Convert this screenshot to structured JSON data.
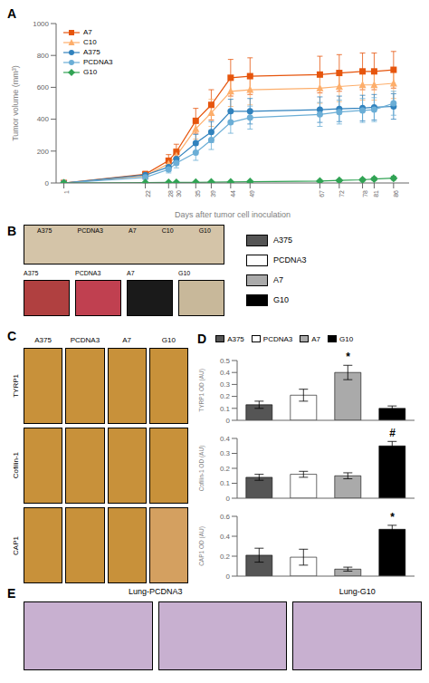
{
  "chart_data": [
    {
      "type": "line",
      "title": "A",
      "xlabel": "Days after tumor cell inoculation",
      "ylabel": "Tumor volume (mm³)",
      "x": [
        1,
        22,
        28,
        30,
        35,
        39,
        44,
        49,
        67,
        72,
        78,
        81,
        86
      ],
      "xlim": [
        -1,
        90
      ],
      "xticks": [
        1,
        22,
        28,
        30,
        35,
        39,
        44,
        49,
        67,
        72,
        78,
        81,
        86
      ],
      "ylim": [
        0,
        1000
      ],
      "yticks": [
        0,
        200,
        400,
        600,
        800,
        1000
      ],
      "legend": "upper left",
      "series": [
        {
          "name": "A7",
          "color": "#e6550d",
          "marker": "square",
          "values": [
            0,
            55,
            140,
            195,
            390,
            490,
            660,
            670,
            680,
            690,
            700,
            700,
            710
          ],
          "errors": [
            0,
            18,
            38,
            48,
            78,
            95,
            115,
            115,
            115,
            115,
            115,
            115,
            115
          ]
        },
        {
          "name": "C10",
          "color": "#fdae6b",
          "marker": "triangle",
          "values": [
            0,
            45,
            120,
            170,
            340,
            440,
            575,
            585,
            595,
            605,
            615,
            615,
            625
          ],
          "errors": [
            0,
            18,
            32,
            45,
            65,
            85,
            95,
            95,
            95,
            95,
            95,
            95,
            95
          ]
        },
        {
          "name": "A375",
          "color": "#3182bd",
          "marker": "circle",
          "values": [
            0,
            50,
            100,
            150,
            250,
            320,
            450,
            450,
            460,
            465,
            470,
            475,
            480
          ],
          "errors": [
            0,
            15,
            25,
            35,
            55,
            65,
            75,
            80,
            80,
            80,
            80,
            80,
            80
          ]
        },
        {
          "name": "PCDNA3",
          "color": "#6baed6",
          "marker": "circle",
          "values": [
            0,
            35,
            85,
            125,
            190,
            270,
            380,
            410,
            430,
            445,
            455,
            460,
            500
          ],
          "errors": [
            0,
            12,
            22,
            30,
            48,
            60,
            68,
            72,
            75,
            75,
            75,
            75,
            75
          ]
        },
        {
          "name": "G10",
          "color": "#31a354",
          "marker": "diamond",
          "values": [
            0,
            2,
            3,
            3,
            4,
            5,
            6,
            8,
            12,
            16,
            20,
            25,
            30
          ],
          "errors": [
            0,
            1,
            1,
            1,
            1,
            1,
            2,
            3,
            4,
            6,
            8,
            10,
            12
          ]
        }
      ]
    },
    {
      "type": "image",
      "title": "B",
      "color": "#d4c4a8",
      "annotations": [
        "A375",
        "PCDNA3",
        "A7",
        "C10",
        "G10"
      ],
      "categories": [
        "A375",
        "PCDNA3",
        "A7",
        "G10"
      ],
      "colors": [
        "#b04040",
        "#c04050",
        "#1a1a1a",
        "#c8b89a"
      ],
      "legend": "right",
      "series": [
        {
          "name": "A375",
          "color": "#555555"
        },
        {
          "name": "PCDNA3",
          "color": "#ffffff"
        },
        {
          "name": "A7",
          "color": "#aaaaaa"
        },
        {
          "name": "G10",
          "color": "#000000"
        }
      ]
    },
    {
      "type": "image",
      "title": "C",
      "categories": [
        "A375",
        "PCDNA3",
        "A7",
        "G10"
      ],
      "series": [
        {
          "name": "TYRP1",
          "colors": [
            "#c8913a",
            "#c8913a",
            "#c8913a",
            "#c8913a"
          ]
        },
        {
          "name": "Cofilin-1",
          "colors": [
            "#c8913a",
            "#c8913a",
            "#c8913a",
            "#c8913a"
          ]
        },
        {
          "name": "CAP1",
          "colors": [
            "#c8913a",
            "#c8913a",
            "#c8913a",
            "#d4a060"
          ]
        }
      ]
    },
    {
      "type": "bar",
      "title": "D",
      "categories": [
        "A375",
        "PCDNA3",
        "A7",
        "G10"
      ],
      "values": [
        0.13,
        0.21,
        0.4,
        0.1
      ],
      "errors": [
        0.03,
        0.05,
        0.06,
        0.02
      ],
      "colors": [
        "#555555",
        "#ffffff",
        "#aaaaaa",
        "#000000"
      ],
      "ylabel": "TYRP1 OD (AU)",
      "ylim": [
        0,
        0.5
      ],
      "yticks": [
        0,
        0.1,
        0.2,
        0.3,
        0.4,
        0.5
      ],
      "annotations": [
        {
          "text": "*",
          "x": "A7"
        }
      ],
      "tick_labels": "y",
      "legend": "top"
    },
    {
      "type": "bar",
      "categories": [
        "A375",
        "PCDNA3",
        "A7",
        "G10"
      ],
      "values": [
        0.14,
        0.16,
        0.15,
        0.35
      ],
      "errors": [
        0.02,
        0.02,
        0.02,
        0.03
      ],
      "colors": [
        "#555555",
        "#ffffff",
        "#aaaaaa",
        "#000000"
      ],
      "ylabel": "Cofilin-1 OD (AU)",
      "ylim": [
        0,
        0.4
      ],
      "yticks": [
        0,
        0.1,
        0.2,
        0.3,
        0.4
      ],
      "annotations": [
        {
          "text": "#",
          "x": "G10"
        }
      ],
      "tick_labels": "y"
    },
    {
      "type": "bar",
      "categories": [
        "A375",
        "PCDNA3",
        "A7",
        "G10"
      ],
      "values": [
        0.21,
        0.19,
        0.07,
        0.47
      ],
      "errors": [
        0.07,
        0.08,
        0.02,
        0.04
      ],
      "colors": [
        "#555555",
        "#ffffff",
        "#aaaaaa",
        "#000000"
      ],
      "ylabel": "CAP1 OD (AU)",
      "ylim": [
        0,
        0.6
      ],
      "yticks": [
        0,
        0.2,
        0.4,
        0.6
      ],
      "annotations": [
        {
          "text": "*",
          "x": "G10"
        }
      ],
      "tick_labels": "y"
    },
    {
      "type": "image",
      "title": "E",
      "color": "#c8b0d0",
      "categories": [
        "Lung-PCDNA3",
        null,
        "Lung-G10"
      ]
    }
  ]
}
